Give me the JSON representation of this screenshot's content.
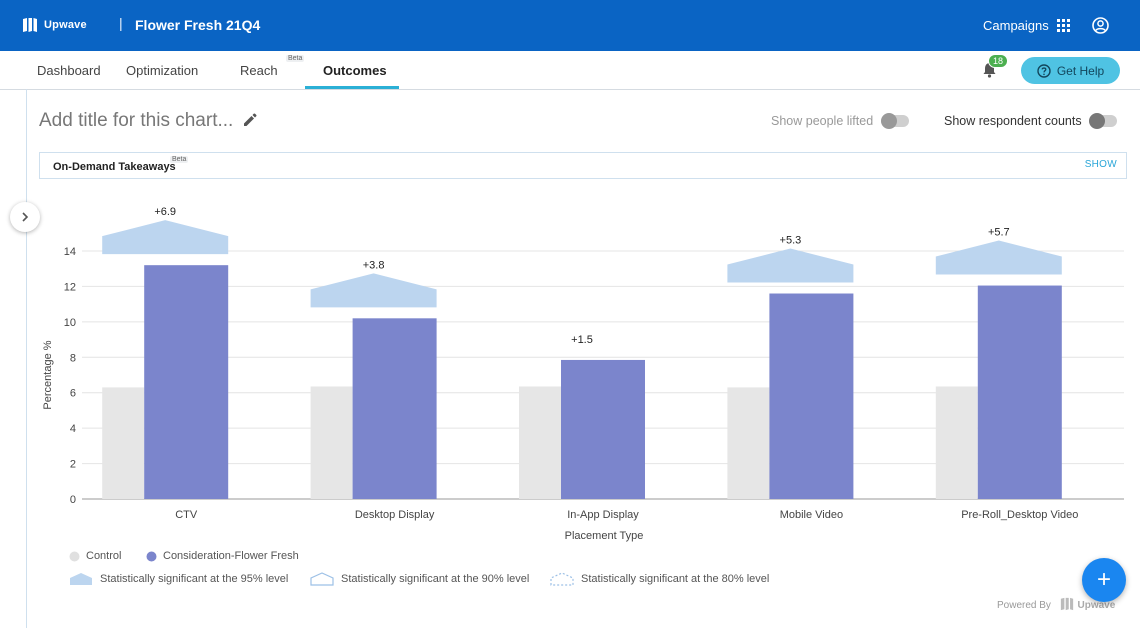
{
  "header": {
    "logo_text": "Upwave",
    "separator": "|",
    "campaign_name": "Flower Fresh 21Q4",
    "campaigns_link": "Campaigns"
  },
  "nav": {
    "tabs": [
      {
        "label": "Dashboard"
      },
      {
        "label": "Optimization"
      },
      {
        "label": "Reach",
        "badge": "Beta"
      },
      {
        "label": "Outcomes",
        "active": true
      }
    ],
    "notification_count": "18",
    "help_label": "Get Help"
  },
  "chart_panel": {
    "title_placeholder": "Add title for this chart...",
    "toggle_people_lifted": "Show people lifted",
    "toggle_respondent_counts": "Show respondent counts",
    "takeaways_label": "On-Demand Takeaways",
    "takeaways_badge": "Beta",
    "takeaways_action": "SHOW"
  },
  "chart_data": {
    "type": "bar",
    "xlabel": "Placement Type",
    "ylabel": "Percentage %",
    "ylim": [
      0,
      14
    ],
    "yticks": [
      0,
      2,
      4,
      6,
      8,
      10,
      12,
      14
    ],
    "grid": true,
    "categories": [
      "CTV",
      "Desktop Display",
      "In-App Display",
      "Mobile Video",
      "Pre-Roll_Desktop Video"
    ],
    "series": [
      {
        "name": "Control",
        "color": "#e6e6e6",
        "values": [
          6.3,
          6.35,
          6.35,
          6.3,
          6.35
        ]
      },
      {
        "name": "Consideration-Flower Fresh",
        "color": "#7b85cc",
        "values": [
          13.2,
          10.2,
          7.85,
          11.6,
          12.05
        ]
      }
    ],
    "lift_labels": [
      "+6.9",
      "+3.8",
      "+1.5",
      "+5.3",
      "+5.7"
    ],
    "significance": [
      "95%",
      "95%",
      "none",
      "95%",
      "95%"
    ],
    "legend": [
      "Control",
      "Consideration-Flower Fresh",
      "Statistically significant at the 95% level",
      "Statistically significant at the 90% level",
      "Statistically significant at the 80% level"
    ]
  },
  "footer": {
    "powered_by": "Powered By",
    "brand": "Upwave",
    "fab": "+"
  }
}
